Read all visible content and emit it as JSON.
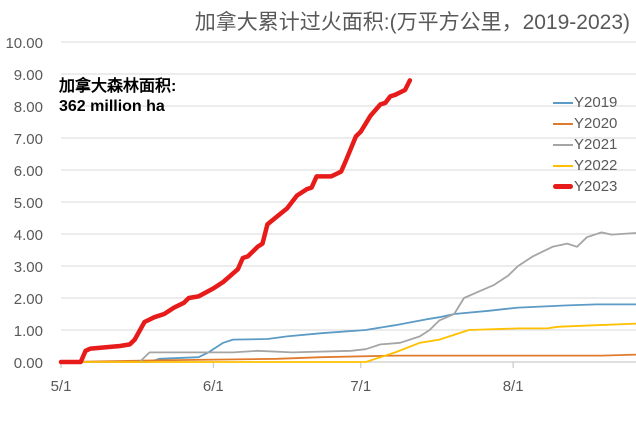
{
  "chart_data": {
    "type": "line",
    "title": "加拿大累计过火面积:(万平方公里，2019-2023)",
    "annotation": [
      "加拿大森林面积:",
      "362 million ha"
    ],
    "xlabel": "",
    "ylabel": "",
    "ylim": [
      0,
      10
    ],
    "yticks": [
      "0.00",
      "1.00",
      "2.00",
      "3.00",
      "4.00",
      "5.00",
      "6.00",
      "7.00",
      "8.00",
      "9.00",
      "10.00"
    ],
    "xlim": [
      "5/1",
      "8/26"
    ],
    "xticks": [
      "5/1",
      "6/1",
      "7/1",
      "8/1"
    ],
    "grid": true,
    "legend_position": "right",
    "series": [
      {
        "name": "Y2019",
        "color": "#5b9bc5",
        "width": 1.8,
        "points": [
          [
            "5/1",
            0
          ],
          [
            "5/19",
            0
          ],
          [
            "5/21",
            0.1
          ],
          [
            "5/29",
            0.15
          ],
          [
            "5/31",
            0.3
          ],
          [
            "6/3",
            0.6
          ],
          [
            "6/5",
            0.7
          ],
          [
            "6/12",
            0.72
          ],
          [
            "6/16",
            0.8
          ],
          [
            "6/23",
            0.9
          ],
          [
            "7/2",
            1.0
          ],
          [
            "7/8",
            1.15
          ],
          [
            "7/15",
            1.35
          ],
          [
            "7/17",
            1.4
          ],
          [
            "7/20",
            1.5
          ],
          [
            "7/27",
            1.6
          ],
          [
            "8/2",
            1.7
          ],
          [
            "8/12",
            1.77
          ],
          [
            "8/18",
            1.8
          ],
          [
            "8/26",
            1.8
          ]
        ]
      },
      {
        "name": "Y2020",
        "color": "#e07b2e",
        "width": 1.8,
        "points": [
          [
            "5/1",
            0
          ],
          [
            "5/20",
            0.05
          ],
          [
            "6/14",
            0.1
          ],
          [
            "6/23",
            0.15
          ],
          [
            "7/8",
            0.2
          ],
          [
            "8/19",
            0.2
          ],
          [
            "8/26",
            0.23
          ]
        ]
      },
      {
        "name": "Y2021",
        "color": "#a5a5a5",
        "width": 1.8,
        "points": [
          [
            "5/1",
            0
          ],
          [
            "5/17",
            0
          ],
          [
            "5/19",
            0.3
          ],
          [
            "6/5",
            0.3
          ],
          [
            "6/10",
            0.35
          ],
          [
            "6/17",
            0.3
          ],
          [
            "6/29",
            0.35
          ],
          [
            "7/2",
            0.4
          ],
          [
            "7/5",
            0.55
          ],
          [
            "7/9",
            0.6
          ],
          [
            "7/13",
            0.8
          ],
          [
            "7/15",
            1.0
          ],
          [
            "7/17",
            1.3
          ],
          [
            "7/20",
            1.5
          ],
          [
            "7/22",
            2.0
          ],
          [
            "7/25",
            2.2
          ],
          [
            "7/28",
            2.4
          ],
          [
            "7/31",
            2.7
          ],
          [
            "8/2",
            3.0
          ],
          [
            "8/5",
            3.3
          ],
          [
            "8/9",
            3.6
          ],
          [
            "8/12",
            3.7
          ],
          [
            "8/14",
            3.6
          ],
          [
            "8/16",
            3.9
          ],
          [
            "8/19",
            4.05
          ],
          [
            "8/21",
            3.98
          ],
          [
            "8/26",
            4.03
          ]
        ]
      },
      {
        "name": "Y2022",
        "color": "#ffc000",
        "width": 1.8,
        "points": [
          [
            "5/1",
            0
          ],
          [
            "7/2",
            0
          ],
          [
            "7/4",
            0.1
          ],
          [
            "7/8",
            0.3
          ],
          [
            "7/13",
            0.6
          ],
          [
            "7/17",
            0.7
          ],
          [
            "7/23",
            1.0
          ],
          [
            "8/2",
            1.05
          ],
          [
            "8/8",
            1.05
          ],
          [
            "8/10",
            1.1
          ],
          [
            "8/18",
            1.15
          ],
          [
            "8/26",
            1.2
          ]
        ]
      },
      {
        "name": "Y2023",
        "color": "#e81b1b",
        "width": 4.5,
        "points": [
          [
            "5/1",
            0
          ],
          [
            "5/5",
            0
          ],
          [
            "5/6",
            0.35
          ],
          [
            "5/7",
            0.42
          ],
          [
            "5/13",
            0.5
          ],
          [
            "5/15",
            0.55
          ],
          [
            "5/16",
            0.7
          ],
          [
            "5/18",
            1.25
          ],
          [
            "5/20",
            1.4
          ],
          [
            "5/22",
            1.5
          ],
          [
            "5/24",
            1.7
          ],
          [
            "5/26",
            1.85
          ],
          [
            "5/27",
            2.0
          ],
          [
            "5/29",
            2.05
          ],
          [
            "6/1",
            2.3
          ],
          [
            "6/3",
            2.5
          ],
          [
            "6/6",
            2.9
          ],
          [
            "6/7",
            3.25
          ],
          [
            "6/8",
            3.3
          ],
          [
            "6/10",
            3.6
          ],
          [
            "6/11",
            3.7
          ],
          [
            "6/12",
            4.3
          ],
          [
            "6/14",
            4.55
          ],
          [
            "6/16",
            4.8
          ],
          [
            "6/18",
            5.2
          ],
          [
            "6/20",
            5.4
          ],
          [
            "6/21",
            5.45
          ],
          [
            "6/22",
            5.8
          ],
          [
            "6/25",
            5.8
          ],
          [
            "6/27",
            5.95
          ],
          [
            "6/28",
            6.3
          ],
          [
            "6/30",
            7.05
          ],
          [
            "7/1",
            7.2
          ],
          [
            "7/3",
            7.7
          ],
          [
            "7/5",
            8.05
          ],
          [
            "7/6",
            8.1
          ],
          [
            "7/7",
            8.3
          ],
          [
            "7/8",
            8.35
          ],
          [
            "7/10",
            8.5
          ],
          [
            "7/11",
            8.8
          ]
        ]
      }
    ]
  }
}
